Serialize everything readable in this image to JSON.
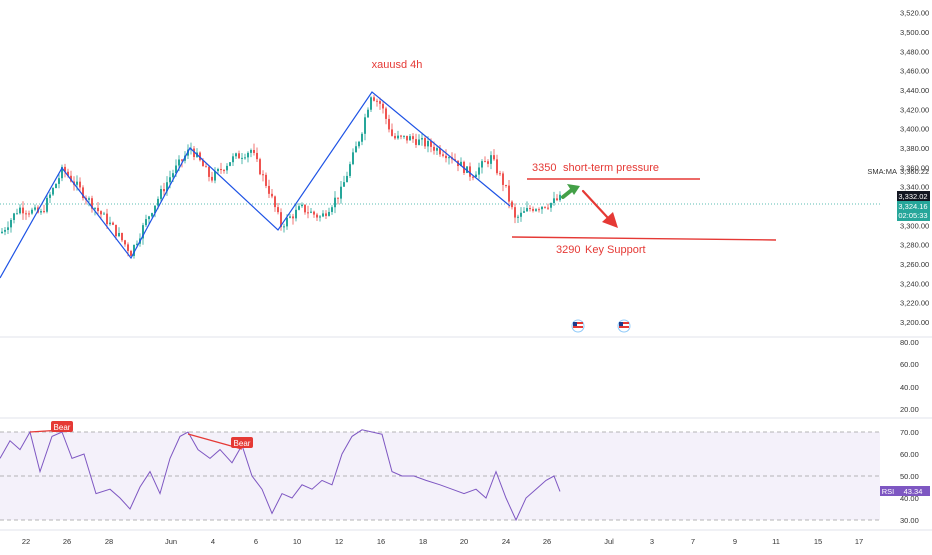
{
  "chart_data": {
    "type": "candlestick",
    "title": "xauusd 4h",
    "price_axis": {
      "ticks": [
        "3,520.00",
        "3,500.00",
        "3,480.00",
        "3,460.00",
        "3,440.00",
        "3,420.00",
        "3,400.00",
        "3,380.00",
        "3,360.00",
        "3,340.00",
        "3,320.00",
        "3,300.00",
        "3,280.00",
        "3,260.00",
        "3,240.00",
        "3,220.00",
        "3,200.00"
      ],
      "ylim": [
        3190,
        3528
      ],
      "sma_label": "SMA:MA",
      "sma_value": "3,360.22",
      "price_box_1": "3,332.02",
      "price_box_2": "3,324.16",
      "countdown": "02:05:33"
    },
    "x_axis": {
      "ticks": [
        "22",
        "26",
        "28",
        "Jun",
        "4",
        "6",
        "10",
        "12",
        "16",
        "18",
        "20",
        "24",
        "26",
        "Jul",
        "3",
        "7",
        "9",
        "11",
        "15",
        "17"
      ]
    },
    "annotations": {
      "resistance_label": "3350",
      "resistance_text": "short-term pressure",
      "resistance_level": 3350,
      "support_label": "3290",
      "support_text": "Key Support",
      "support_level": 3286
    },
    "rsi": {
      "ticks": [
        "80.00",
        "60.00",
        "40.00",
        "20.00",
        "70.00",
        "60.00",
        "50.00",
        "40.00",
        "30.00"
      ],
      "label": "RSI",
      "value": "43.34",
      "divergence_labels": [
        "Bear",
        "Bear"
      ]
    },
    "colors": {
      "up": "#26a69a",
      "down": "#ef5350",
      "annotation_red": "#e53935",
      "trend_blue": "#1e53e5",
      "rsi_line": "#7e57c2",
      "arrow_green": "#43a047"
    }
  }
}
